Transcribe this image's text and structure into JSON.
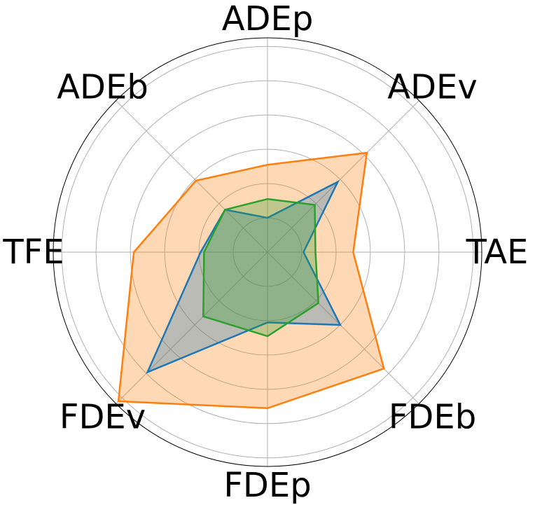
{
  "chart_data": {
    "type": "radar",
    "axes": [
      "ADEp",
      "ADEv",
      "TAE",
      "FDEb",
      "FDEp",
      "FDEv",
      "TFE",
      "ADEb"
    ],
    "r_max": 1.25,
    "rings": [
      0.2,
      0.4,
      0.6,
      0.8,
      1.0,
      1.2
    ],
    "grid": true,
    "legend": "none",
    "series": [
      {
        "color": "#ff7f0e",
        "fill_opacity": 0.3,
        "values": [
          0.51,
          0.82,
          0.5,
          0.96,
          0.91,
          1.23,
          0.78,
          0.59
        ]
      },
      {
        "color": "#1f77b4",
        "fill_opacity": 0.3,
        "values": [
          0.2,
          0.58,
          0.21,
          0.6,
          0.41,
          0.99,
          0.39,
          0.35
        ]
      },
      {
        "color": "#2ca02c",
        "fill_opacity": 0.3,
        "values": [
          0.31,
          0.39,
          0.28,
          0.42,
          0.49,
          0.53,
          0.37,
          0.35
        ]
      }
    ]
  }
}
